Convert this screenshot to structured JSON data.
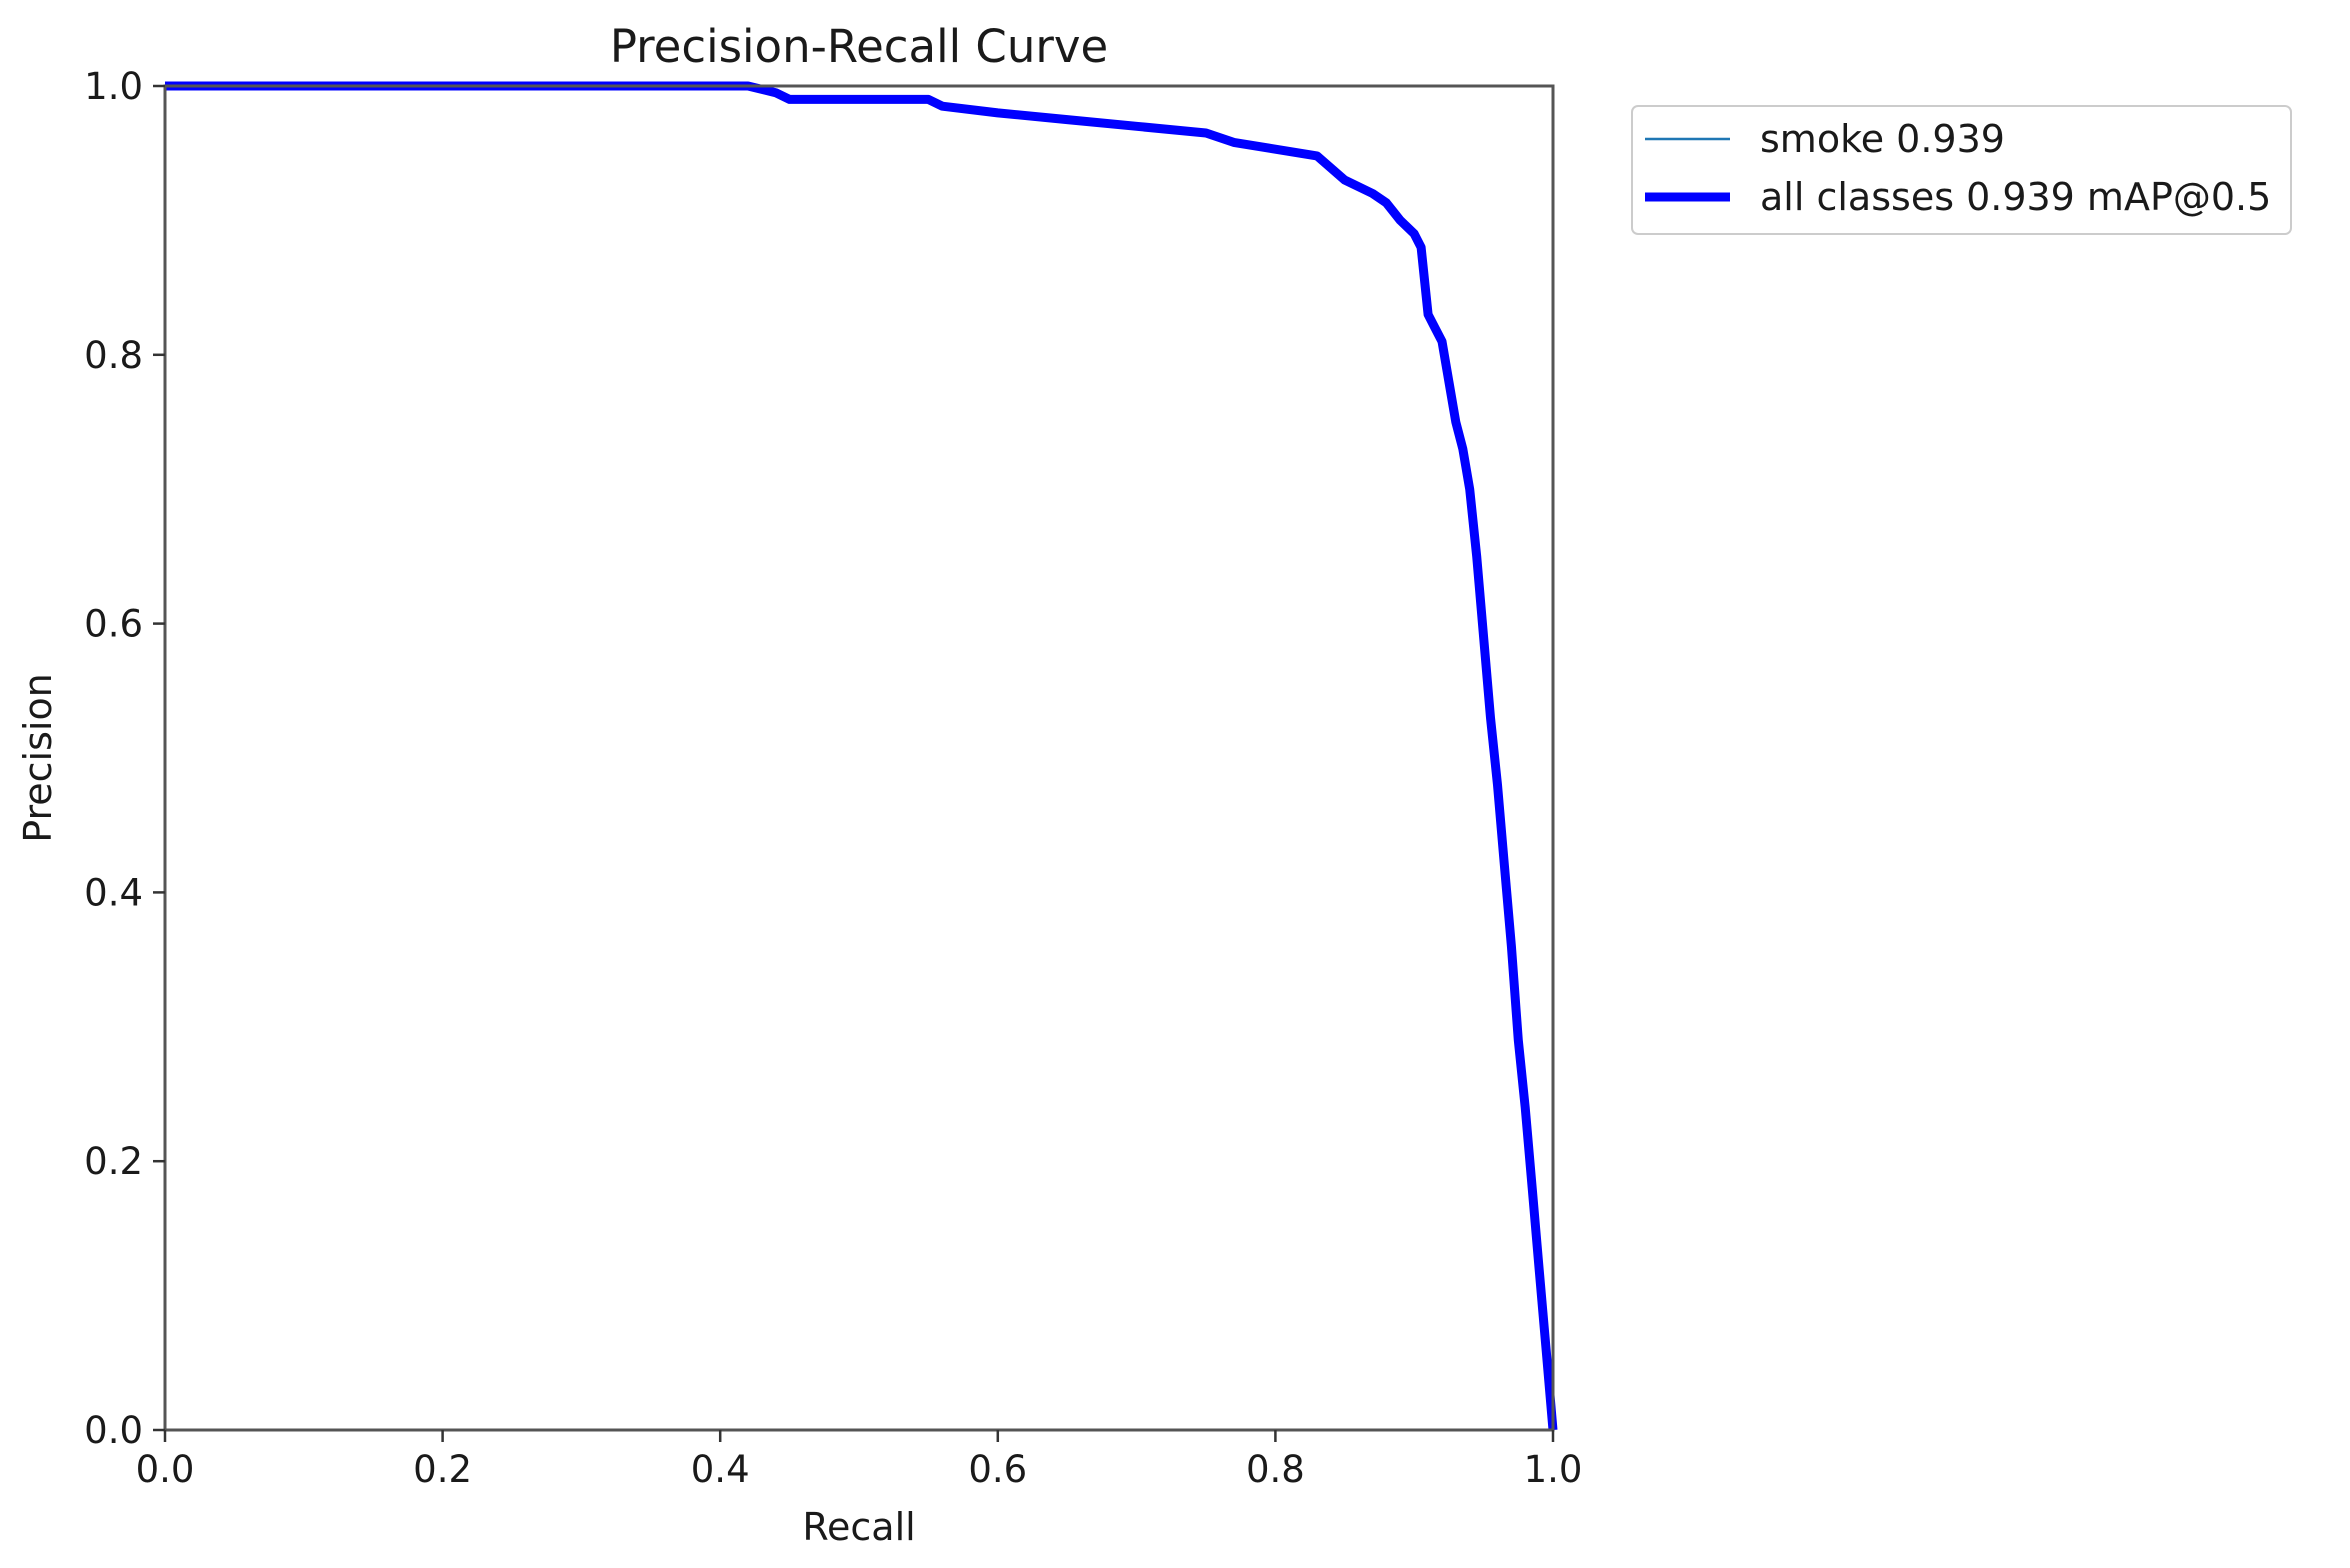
{
  "chart_data": {
    "type": "line",
    "title": "Precision-Recall Curve",
    "xlabel": "Recall",
    "ylabel": "Precision",
    "xlim": [
      0.0,
      1.0
    ],
    "ylim": [
      0.0,
      1.0
    ],
    "xticks": [
      "0.0",
      "0.2",
      "0.4",
      "0.6",
      "0.8",
      "1.0"
    ],
    "yticks": [
      "0.0",
      "0.2",
      "0.4",
      "0.6",
      "0.8",
      "1.0"
    ],
    "grid": false,
    "legend_position": "outside-top-right",
    "series": [
      {
        "name": "smoke 0.939",
        "color": "#1f77b4",
        "style": "thin",
        "x": [
          0.0,
          0.1,
          0.2,
          0.3,
          0.4,
          0.42,
          0.44,
          0.45,
          0.5,
          0.55,
          0.56,
          0.6,
          0.65,
          0.7,
          0.75,
          0.77,
          0.8,
          0.83,
          0.85,
          0.87,
          0.88,
          0.89,
          0.9,
          0.905,
          0.91,
          0.915,
          0.92,
          0.925,
          0.93,
          0.935,
          0.94,
          0.945,
          0.95,
          0.955,
          0.96,
          0.965,
          0.97,
          0.975,
          0.98,
          0.985,
          0.99,
          0.995,
          1.0
        ],
        "y": [
          1.0,
          1.0,
          1.0,
          1.0,
          1.0,
          1.0,
          0.995,
          0.99,
          0.99,
          0.99,
          0.985,
          0.98,
          0.975,
          0.97,
          0.965,
          0.958,
          0.953,
          0.948,
          0.93,
          0.92,
          0.913,
          0.9,
          0.89,
          0.88,
          0.83,
          0.82,
          0.81,
          0.78,
          0.75,
          0.73,
          0.7,
          0.65,
          0.59,
          0.53,
          0.48,
          0.42,
          0.36,
          0.29,
          0.24,
          0.18,
          0.12,
          0.06,
          0.0
        ]
      },
      {
        "name": "all classes 0.939 mAP@0.5",
        "color": "#0000ff",
        "style": "thick",
        "x": [
          0.0,
          0.1,
          0.2,
          0.3,
          0.4,
          0.42,
          0.44,
          0.45,
          0.5,
          0.55,
          0.56,
          0.6,
          0.65,
          0.7,
          0.75,
          0.77,
          0.8,
          0.83,
          0.85,
          0.87,
          0.88,
          0.89,
          0.9,
          0.905,
          0.91,
          0.915,
          0.92,
          0.925,
          0.93,
          0.935,
          0.94,
          0.945,
          0.95,
          0.955,
          0.96,
          0.965,
          0.97,
          0.975,
          0.98,
          0.985,
          0.99,
          0.995,
          1.0
        ],
        "y": [
          1.0,
          1.0,
          1.0,
          1.0,
          1.0,
          1.0,
          0.995,
          0.99,
          0.99,
          0.99,
          0.985,
          0.98,
          0.975,
          0.97,
          0.965,
          0.958,
          0.953,
          0.948,
          0.93,
          0.92,
          0.913,
          0.9,
          0.89,
          0.88,
          0.83,
          0.82,
          0.81,
          0.78,
          0.75,
          0.73,
          0.7,
          0.65,
          0.59,
          0.53,
          0.48,
          0.42,
          0.36,
          0.29,
          0.24,
          0.18,
          0.12,
          0.06,
          0.0
        ]
      }
    ]
  }
}
